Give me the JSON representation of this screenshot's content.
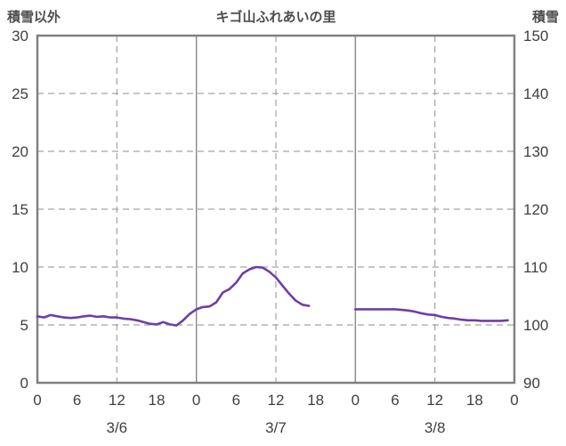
{
  "header": {
    "left_axis_label": "積雪以外",
    "title": "キゴ山ふれあいの里",
    "right_axis_label": "積雪"
  },
  "colors": {
    "series_purple": "#6d3fa4",
    "border_gray": "#808080",
    "grid_solid": "#8c8c8c",
    "grid_dashed": "#a3a3a3",
    "text_gray": "#3f3f3f"
  },
  "chart_data": {
    "type": "line",
    "title": "キゴ山ふれあいの里",
    "left_axis": {
      "label": "積雪以外",
      "min": 0,
      "max": 30,
      "tick_step": 5,
      "ticks": [
        0,
        5,
        10,
        15,
        20,
        25,
        30
      ]
    },
    "right_axis": {
      "label": "積雪",
      "min": 90,
      "max": 150,
      "tick_step": 10,
      "ticks": [
        90,
        100,
        110,
        120,
        130,
        140,
        150
      ]
    },
    "x_axis": {
      "total_hours": 72,
      "tick_step_hours": 6,
      "hour_tick_labels": [
        "0",
        "6",
        "12",
        "18",
        "0",
        "6",
        "12",
        "18",
        "0",
        "6",
        "12",
        "18",
        "0"
      ],
      "day_labels": [
        "3/6",
        "3/7",
        "3/8"
      ]
    },
    "grid": {
      "horizontal": "dashed",
      "noon_lines": "dashed",
      "midnight_lines": "solid"
    },
    "series": [
      {
        "name": "積雪",
        "axis": "right",
        "color": "#6d3fa4",
        "segments": [
          [
            [
              0,
              101.5
            ],
            [
              1,
              101.3
            ],
            [
              2,
              101.7
            ],
            [
              3,
              101.5
            ],
            [
              4,
              101.3
            ],
            [
              5,
              101.2
            ],
            [
              6,
              101.3
            ],
            [
              7,
              101.5
            ],
            [
              8,
              101.6
            ],
            [
              9,
              101.4
            ],
            [
              10,
              101.5
            ],
            [
              11,
              101.3
            ],
            [
              12,
              101.3
            ],
            [
              13,
              101.1
            ],
            [
              14,
              101.0
            ],
            [
              15,
              100.8
            ],
            [
              16,
              100.5
            ],
            [
              17,
              100.2
            ],
            [
              18,
              100.1
            ],
            [
              19,
              100.5
            ],
            [
              20,
              100.1
            ],
            [
              21,
              99.9
            ],
            [
              22,
              100.8
            ],
            [
              23,
              101.9
            ],
            [
              24,
              102.7
            ],
            [
              25,
              103.1
            ],
            [
              26,
              103.2
            ],
            [
              27,
              103.9
            ],
            [
              28,
              105.6
            ],
            [
              29,
              106.2
            ],
            [
              30,
              107.3
            ],
            [
              31,
              108.9
            ],
            [
              32,
              109.6
            ],
            [
              33,
              110.0
            ],
            [
              34,
              109.9
            ],
            [
              35,
              109.2
            ],
            [
              36,
              108.2
            ],
            [
              37,
              106.8
            ],
            [
              38,
              105.4
            ],
            [
              39,
              104.2
            ],
            [
              40,
              103.5
            ],
            [
              41,
              103.3
            ]
          ],
          [
            [
              48,
              102.7
            ],
            [
              49,
              102.7
            ],
            [
              50,
              102.7
            ],
            [
              51,
              102.7
            ],
            [
              52,
              102.7
            ],
            [
              53,
              102.7
            ],
            [
              54,
              102.7
            ],
            [
              55,
              102.6
            ],
            [
              56,
              102.5
            ],
            [
              57,
              102.3
            ],
            [
              58,
              102.0
            ],
            [
              59,
              101.8
            ],
            [
              60,
              101.7
            ],
            [
              61,
              101.4
            ],
            [
              62,
              101.2
            ],
            [
              63,
              101.1
            ],
            [
              64,
              100.9
            ],
            [
              65,
              100.8
            ],
            [
              66,
              100.8
            ],
            [
              67,
              100.7
            ],
            [
              68,
              100.7
            ],
            [
              69,
              100.7
            ],
            [
              70,
              100.7
            ],
            [
              71,
              100.8
            ]
          ]
        ]
      }
    ]
  }
}
